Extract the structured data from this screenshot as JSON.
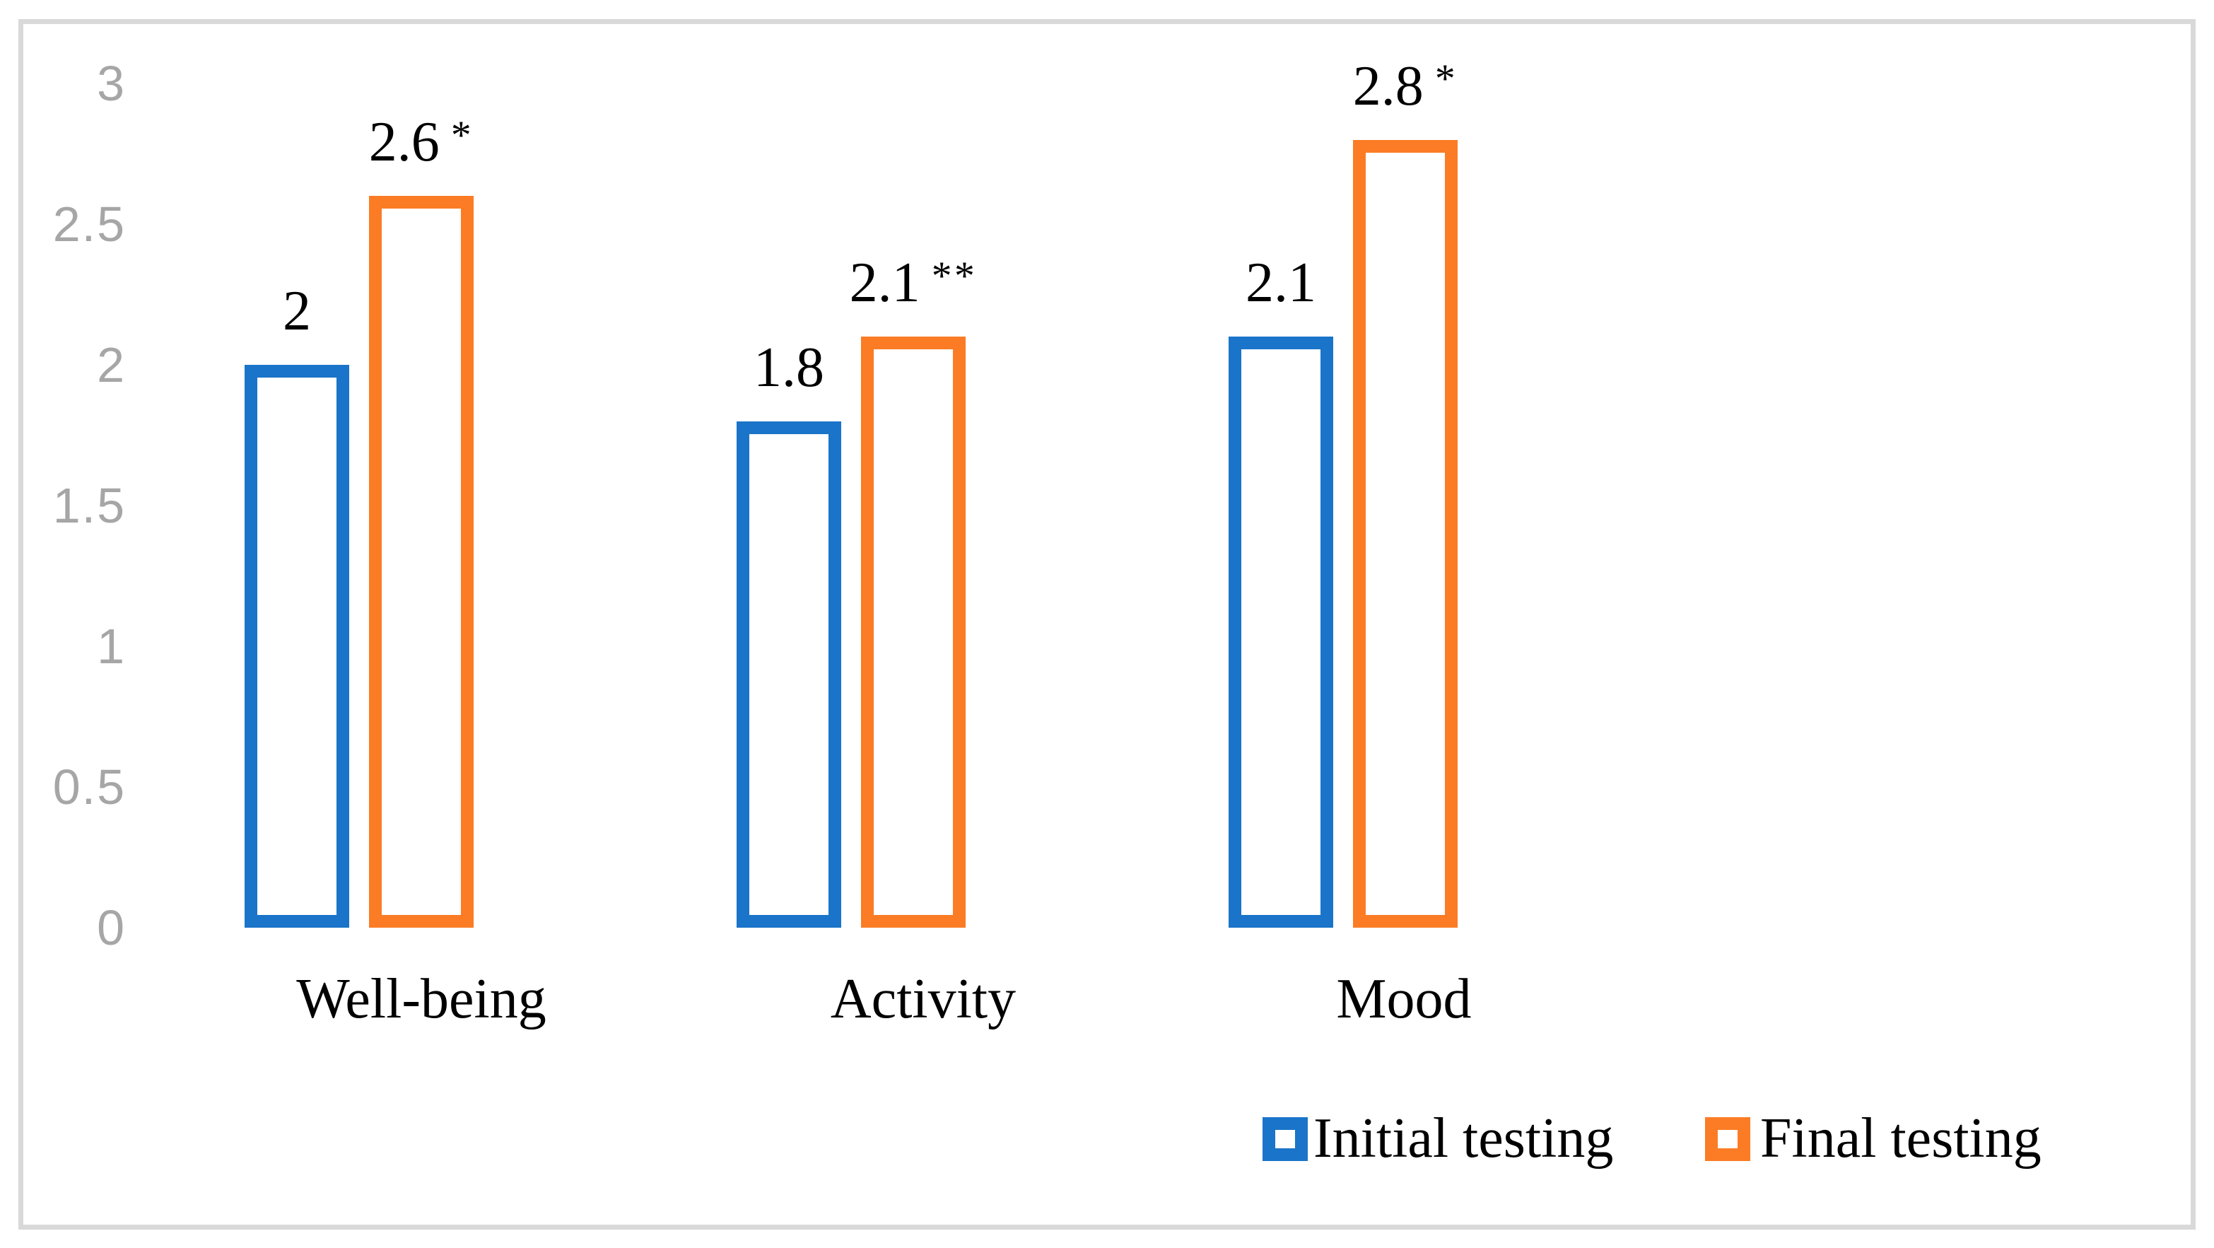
{
  "chart_data": {
    "type": "bar",
    "bar_style": "hollow-outline",
    "title": "",
    "xlabel": "",
    "ylabel": "",
    "categories": [
      "Well-being",
      "Activity",
      "Mood"
    ],
    "series": [
      {
        "name": "Initial testing",
        "color": "#1a74c9",
        "values": [
          2,
          1.8,
          2.1
        ],
        "data_labels": [
          "2",
          "1.8",
          "2.1"
        ],
        "significance": [
          "",
          "",
          ""
        ]
      },
      {
        "name": "Final testing",
        "color": "#fb7c25",
        "values": [
          2.6,
          2.1,
          2.8
        ],
        "data_labels": [
          "2.6",
          "2.1",
          "2.8"
        ],
        "significance": [
          "*",
          "**",
          "*"
        ]
      }
    ],
    "y_axis": {
      "tick_labels": [
        "3",
        "2.5",
        "2",
        "1.5",
        "1",
        "0.5",
        "0"
      ],
      "tick_values": [
        3,
        2.5,
        2,
        1.5,
        1,
        0.5,
        0
      ],
      "range": [
        0,
        3
      ],
      "tick_color": "#a6a6a6"
    },
    "grid": false,
    "legend_position": "bottom-right",
    "frame_color": "#d9d9d9",
    "label_color": "#000000",
    "background_color": "#ffffff"
  }
}
